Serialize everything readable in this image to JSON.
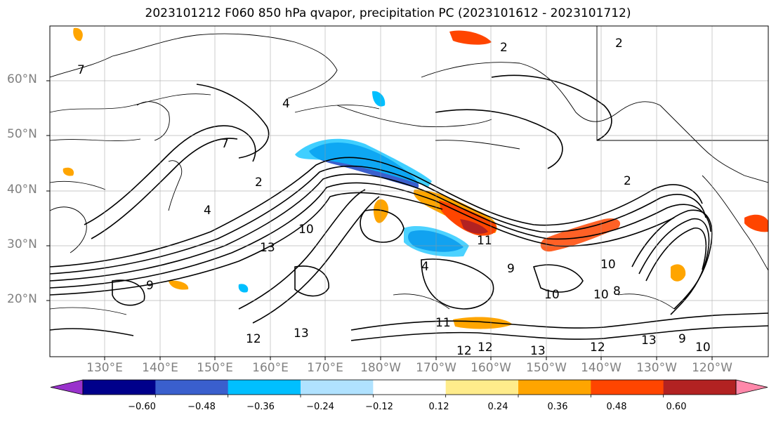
{
  "title": "2023101212 F060 850 hPa qvapor, precipitation PC (2023101612 - 2023101712)",
  "map": {
    "lat_labels": [
      "60°N",
      "50°N",
      "40°N",
      "30°N",
      "20°N"
    ],
    "lon_labels": [
      "130°E",
      "140°E",
      "150°E",
      "160°E",
      "170°E",
      "180°W",
      "170°W",
      "160°W",
      "150°W",
      "140°W",
      "130°W",
      "120°W"
    ],
    "contour_labels": [
      "2",
      "2",
      "4",
      "7",
      "7",
      "2",
      "2",
      "10",
      "11",
      "13",
      "12",
      "13",
      "12",
      "13",
      "12",
      "10",
      "10",
      "9",
      "9",
      "4",
      "13",
      "11",
      "10",
      "8",
      "4",
      "9",
      "10",
      "12"
    ]
  },
  "colorbar": {
    "ticks": [
      "−0.60",
      "−0.48",
      "−0.36",
      "−0.24",
      "−0.12",
      "0.12",
      "0.24",
      "0.36",
      "0.48",
      "0.60"
    ],
    "colors": [
      "#9932cc",
      "#00008b",
      "#3a5fcd",
      "#00bfff",
      "#b0e2ff",
      "#ffffff",
      "#ffec8b",
      "#ffa500",
      "#ff4500",
      "#b22222",
      "#ff88aa"
    ]
  }
}
